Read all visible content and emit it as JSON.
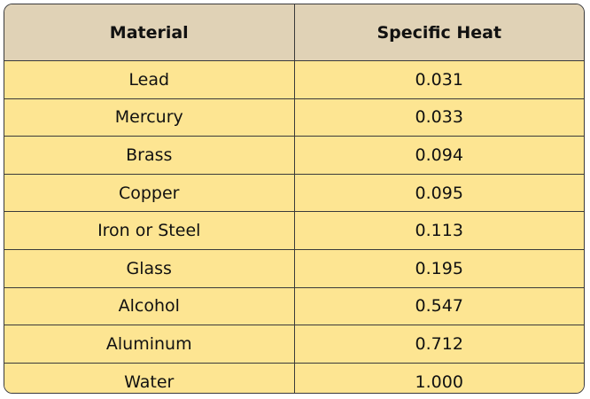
{
  "table": {
    "headers": [
      "Material",
      "Specific Heat"
    ],
    "rows": [
      [
        "Lead",
        "0.031"
      ],
      [
        "Mercury",
        "0.033"
      ],
      [
        "Brass",
        "0.094"
      ],
      [
        "Copper",
        "0.095"
      ],
      [
        "Iron or Steel",
        "0.113"
      ],
      [
        "Glass",
        "0.195"
      ],
      [
        "Alcohol",
        "0.547"
      ],
      [
        "Aluminum",
        "0.712"
      ],
      [
        "Water",
        "1.000"
      ]
    ]
  },
  "colors": {
    "header_bg": "#e0d2b6",
    "row_bg": "#fde592",
    "border": "#3a3a3a"
  }
}
